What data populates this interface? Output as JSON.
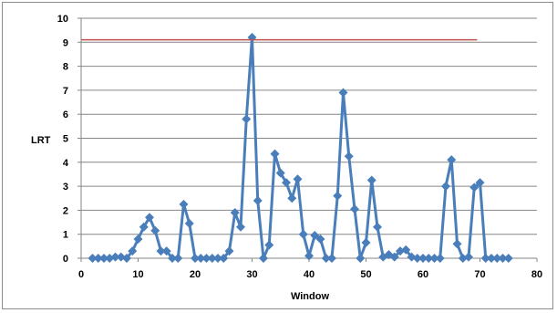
{
  "chart_data": {
    "type": "line",
    "title": "",
    "xlabel": "Window",
    "ylabel": "LRT",
    "xlim": [
      0,
      80
    ],
    "ylim": [
      0,
      10
    ],
    "xticks": [
      0,
      10,
      20,
      30,
      40,
      50,
      60,
      70,
      80
    ],
    "yticks": [
      0,
      1,
      2,
      3,
      4,
      5,
      6,
      7,
      8,
      9,
      10
    ],
    "grid": "horizontal",
    "legend": "none",
    "series": [
      {
        "color": "#4a7ebb",
        "marker": "diamond",
        "x": [
          2,
          3,
          4,
          5,
          6,
          7,
          8,
          9,
          10,
          11,
          12,
          13,
          14,
          15,
          16,
          17,
          18,
          19,
          20,
          21,
          22,
          23,
          24,
          25,
          26,
          27,
          28,
          29,
          30,
          31,
          32,
          33,
          34,
          35,
          36,
          37,
          38,
          39,
          40,
          41,
          42,
          43,
          44,
          45,
          46,
          47,
          48,
          49,
          50,
          51,
          52,
          53,
          54,
          55,
          56,
          57,
          58,
          59,
          60,
          61,
          62,
          63,
          64,
          65,
          66,
          67,
          68,
          69,
          70,
          71,
          72,
          73,
          74,
          75
        ],
        "y": [
          0,
          0,
          0,
          0,
          0.05,
          0.05,
          0,
          0.3,
          0.8,
          1.3,
          1.7,
          1.15,
          0.3,
          0.3,
          0,
          0,
          2.25,
          1.45,
          0,
          0,
          0,
          0,
          0,
          0,
          0.3,
          1.9,
          1.3,
          5.8,
          9.2,
          2.4,
          0,
          0.55,
          4.35,
          3.55,
          3.15,
          2.5,
          3.3,
          1.0,
          0.1,
          0.95,
          0.8,
          0,
          0,
          2.6,
          6.9,
          4.25,
          2.05,
          0,
          0.65,
          3.25,
          1.3,
          0.05,
          0.15,
          0.05,
          0.3,
          0.35,
          0.05,
          0,
          0,
          0,
          0,
          0,
          3.0,
          4.1,
          0.6,
          0,
          0.05,
          2.95,
          3.15,
          0,
          0,
          0,
          0,
          0
        ]
      },
      {
        "color": "#c0504d",
        "marker": "none",
        "x": [
          0,
          69.5
        ],
        "y": [
          9.1,
          9.1
        ]
      }
    ]
  },
  "colors": {
    "series": "#4a7ebb",
    "threshold": "#c0504d",
    "gridline": "#868686",
    "axis": "#868686",
    "frame": "#8c8c8c"
  }
}
